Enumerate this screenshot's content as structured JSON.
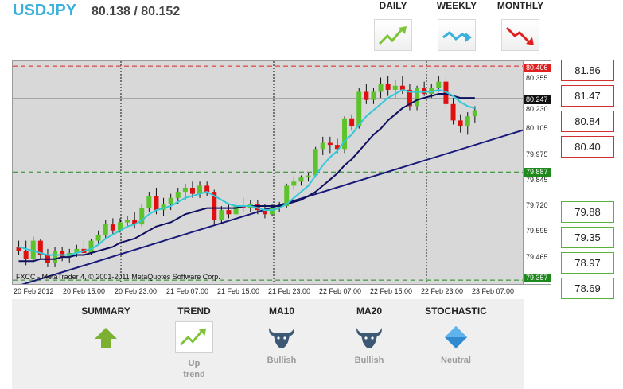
{
  "header": {
    "symbol": "USDJPY",
    "quote": "80.138 / 80.152"
  },
  "periods": [
    {
      "label": "DAILY",
      "icon": "uptrend-icon"
    },
    {
      "label": "WEEKLY",
      "icon": "sideways-trend-icon"
    },
    {
      "label": "MONTHLY",
      "icon": "downtrend-icon"
    }
  ],
  "chart": {
    "watermark": "FXCC - MetaTrader 4, © 2001-2011 MetaQuotes Software Corp.",
    "y_labels": [
      "80.355",
      "80.230",
      "80.105",
      "79.975",
      "79.845",
      "79.720",
      "79.595",
      "79.465"
    ],
    "tags": {
      "top": "80.406",
      "current": "80.247",
      "mid": "79.887",
      "bottom": "79.357"
    },
    "x_labels": [
      "20 Feb 2012",
      "20 Feb 15:00",
      "20 Feb 23:00",
      "21 Feb 07:00",
      "21 Feb 15:00",
      "21 Feb 23:00",
      "22 Feb 07:00",
      "22 Feb 15:00",
      "22 Feb 23:00",
      "23 Feb 07:00"
    ],
    "colors": {
      "bull": "#5ec32a",
      "bear": "#e01010",
      "fast_ma": "#33c8d8",
      "slow_ma": "#101060",
      "trend": "#1a1a7a"
    }
  },
  "chart_data": {
    "type": "candlestick",
    "y_range": [
      79.33,
      80.43
    ],
    "candles": [
      [
        79.52,
        79.55,
        79.48,
        79.5
      ],
      [
        79.5,
        79.55,
        79.43,
        79.46
      ],
      [
        79.46,
        79.57,
        79.44,
        79.55
      ],
      [
        79.55,
        79.56,
        79.46,
        79.48
      ],
      [
        79.48,
        79.51,
        79.42,
        79.44
      ],
      [
        79.44,
        79.52,
        79.42,
        79.5
      ],
      [
        79.5,
        79.52,
        79.45,
        79.47
      ],
      [
        79.47,
        79.51,
        79.44,
        79.49
      ],
      [
        79.49,
        79.53,
        79.47,
        79.51
      ],
      [
        79.51,
        79.56,
        79.47,
        79.49
      ],
      [
        79.49,
        79.56,
        79.48,
        79.55
      ],
      [
        79.55,
        79.6,
        79.53,
        79.58
      ],
      [
        79.58,
        79.65,
        79.56,
        79.63
      ],
      [
        79.63,
        79.66,
        79.58,
        79.6
      ],
      [
        79.6,
        79.66,
        79.59,
        79.64
      ],
      [
        79.64,
        79.67,
        79.62,
        79.65
      ],
      [
        79.65,
        79.69,
        79.61,
        79.63
      ],
      [
        79.63,
        79.73,
        79.62,
        79.71
      ],
      [
        79.71,
        79.79,
        79.69,
        79.77
      ],
      [
        79.77,
        79.81,
        79.68,
        79.7
      ],
      [
        79.7,
        79.76,
        79.67,
        79.73
      ],
      [
        79.73,
        79.78,
        79.7,
        79.76
      ],
      [
        79.76,
        79.81,
        79.73,
        79.79
      ],
      [
        79.79,
        79.83,
        79.75,
        79.81
      ],
      [
        79.81,
        79.84,
        79.76,
        79.78
      ],
      [
        79.78,
        79.84,
        79.76,
        79.82
      ],
      [
        79.82,
        79.84,
        79.77,
        79.79
      ],
      [
        79.79,
        79.8,
        79.63,
        79.65
      ],
      [
        79.65,
        79.72,
        79.63,
        79.7
      ],
      [
        79.7,
        79.73,
        79.66,
        79.68
      ],
      [
        79.68,
        79.74,
        79.67,
        79.72
      ],
      [
        79.72,
        79.76,
        79.69,
        79.71
      ],
      [
        79.71,
        79.75,
        79.69,
        79.73
      ],
      [
        79.73,
        79.75,
        79.68,
        79.7
      ],
      [
        79.7,
        79.73,
        79.66,
        79.68
      ],
      [
        79.68,
        79.73,
        79.67,
        79.71
      ],
      [
        79.71,
        79.74,
        79.69,
        79.72
      ],
      [
        79.72,
        79.83,
        79.71,
        79.82
      ],
      [
        79.82,
        79.86,
        79.8,
        79.84
      ],
      [
        79.84,
        79.87,
        79.82,
        79.86
      ],
      [
        79.86,
        79.88,
        79.84,
        79.87
      ],
      [
        79.87,
        80.01,
        79.86,
        80.0
      ],
      [
        80.0,
        80.06,
        79.97,
        80.03
      ],
      [
        80.03,
        80.06,
        79.98,
        80.02
      ],
      [
        80.02,
        80.05,
        79.98,
        80.0
      ],
      [
        80.0,
        80.16,
        79.98,
        80.15
      ],
      [
        80.15,
        80.17,
        80.09,
        80.11
      ],
      [
        80.11,
        80.3,
        80.1,
        80.28
      ],
      [
        80.28,
        80.32,
        80.22,
        80.24
      ],
      [
        80.24,
        80.3,
        80.22,
        80.28
      ],
      [
        80.28,
        80.35,
        80.25,
        80.32
      ],
      [
        80.32,
        80.36,
        80.26,
        80.29
      ],
      [
        80.29,
        80.34,
        80.25,
        80.31
      ],
      [
        80.31,
        80.36,
        80.27,
        80.29
      ],
      [
        80.29,
        80.32,
        80.19,
        80.21
      ],
      [
        80.21,
        80.31,
        80.19,
        80.3
      ],
      [
        80.3,
        80.33,
        80.26,
        80.27
      ],
      [
        80.27,
        80.32,
        80.25,
        80.3
      ],
      [
        80.3,
        80.36,
        80.28,
        80.33
      ],
      [
        80.33,
        80.35,
        80.2,
        80.22
      ],
      [
        80.22,
        80.25,
        80.12,
        80.14
      ],
      [
        80.14,
        80.17,
        80.08,
        80.11
      ],
      [
        80.11,
        80.18,
        80.07,
        80.16
      ],
      [
        80.16,
        80.21,
        80.13,
        80.19
      ]
    ],
    "fast_ma": [
      79.52,
      79.51,
      79.5,
      79.49,
      79.48,
      79.48,
      79.48,
      79.48,
      79.49,
      79.5,
      79.51,
      79.53,
      79.56,
      79.58,
      79.6,
      79.62,
      79.63,
      79.65,
      79.68,
      79.7,
      79.71,
      79.72,
      79.74,
      79.76,
      79.77,
      79.78,
      79.79,
      79.77,
      79.75,
      79.73,
      79.72,
      79.72,
      79.72,
      79.71,
      79.7,
      79.7,
      79.71,
      79.73,
      79.76,
      79.79,
      79.82,
      79.87,
      79.92,
      79.96,
      79.99,
      80.04,
      80.07,
      80.12,
      80.16,
      80.19,
      80.22,
      80.25,
      80.27,
      80.29,
      80.28,
      80.28,
      80.28,
      80.28,
      80.29,
      80.28,
      80.26,
      80.23,
      80.21,
      80.2
    ],
    "slow_ma": [
      79.45,
      79.45,
      79.45,
      79.46,
      79.46,
      79.46,
      79.47,
      79.47,
      79.48,
      79.48,
      79.49,
      79.5,
      79.51,
      79.52,
      79.54,
      79.55,
      79.56,
      79.58,
      79.6,
      79.62,
      79.63,
      79.64,
      79.66,
      79.68,
      79.69,
      79.7,
      79.71,
      79.71,
      79.71,
      79.71,
      79.71,
      79.72,
      79.72,
      79.72,
      79.72,
      79.72,
      79.72,
      79.73,
      79.74,
      79.75,
      79.77,
      79.79,
      79.82,
      79.85,
      79.88,
      79.92,
      79.95,
      79.99,
      80.03,
      80.07,
      80.1,
      80.14,
      80.17,
      80.2,
      80.22,
      80.24,
      80.25,
      80.26,
      80.27,
      80.27,
      80.26,
      80.25,
      80.25,
      80.25
    ],
    "trendline": [
      [
        0,
        79.33
      ],
      [
        74,
        80.14
      ]
    ],
    "levels": {
      "top": 80.406,
      "mid": 79.887,
      "bottom": 79.357,
      "current": 80.247
    }
  },
  "levels": {
    "resistance": [
      "81.86",
      "81.47",
      "80.84",
      "80.40"
    ],
    "support": [
      "79.88",
      "79.35",
      "78.97",
      "78.69"
    ]
  },
  "indicators": [
    {
      "title": "SUMMARY",
      "icon": "up-arrow-icon",
      "value": ""
    },
    {
      "title": "TREND",
      "icon": "uptrend-icon",
      "value": "Up\ntrend"
    },
    {
      "title": "MA10",
      "icon": "bull-icon",
      "value": "Bullish"
    },
    {
      "title": "MA20",
      "icon": "bull-icon",
      "value": "Bullish"
    },
    {
      "title": "STOCHASTIC",
      "icon": "diamond-icon",
      "value": "Neutral"
    }
  ]
}
